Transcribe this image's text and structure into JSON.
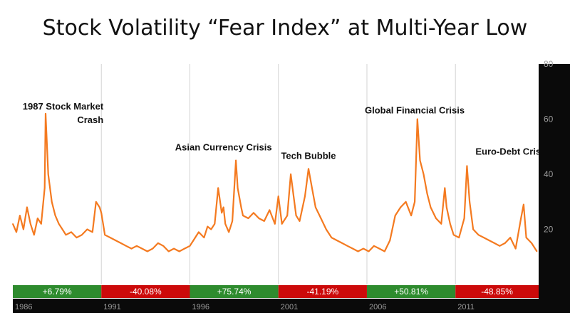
{
  "title": "Stock Volatility “Fear Index” at Multi-Year Low",
  "chart_data": {
    "type": "line",
    "title": "Stock Volatility “Fear Index” at Multi-Year Low",
    "xlim": [
      1986,
      2015.7
    ],
    "ylim": [
      0,
      80
    ],
    "y_ticks": [
      20,
      40,
      60,
      80
    ],
    "y_tick_labels": [
      "20",
      "40",
      "60",
      "80"
    ],
    "x_ticks": [
      1986,
      1991,
      1996,
      2001,
      2006,
      2011
    ],
    "x_tick_labels": [
      "1986",
      "1991",
      "1996",
      "2001",
      "2006",
      "2011"
    ],
    "grid": true,
    "line_color": "#f47a20",
    "series": [
      {
        "x": [
          1986.0,
          1986.2,
          1986.4,
          1986.6,
          1986.8,
          1987.0,
          1987.2,
          1987.4,
          1987.6,
          1987.8,
          1987.85,
          1987.9,
          1988.0,
          1988.2,
          1988.4,
          1988.6,
          1988.8,
          1989.0,
          1989.3,
          1989.6,
          1989.9,
          1990.2,
          1990.5,
          1990.7,
          1990.9,
          1991.0,
          1991.2,
          1991.5,
          1991.8,
          1992.1,
          1992.4,
          1992.7,
          1993.0,
          1993.3,
          1993.6,
          1993.9,
          1994.2,
          1994.5,
          1994.8,
          1995.1,
          1995.4,
          1995.7,
          1996.0,
          1996.2,
          1996.5,
          1996.8,
          1997.0,
          1997.2,
          1997.4,
          1997.6,
          1997.8,
          1997.9,
          1998.0,
          1998.2,
          1998.4,
          1998.6,
          1998.7,
          1998.9,
          1999.0,
          1999.3,
          1999.6,
          1999.9,
          2000.2,
          2000.5,
          2000.8,
          2001.0,
          2001.2,
          2001.5,
          2001.7,
          2001.9,
          2002.0,
          2002.2,
          2002.5,
          2002.7,
          2002.9,
          2003.1,
          2003.4,
          2003.7,
          2004.0,
          2004.3,
          2004.6,
          2004.9,
          2005.2,
          2005.5,
          2005.8,
          2006.1,
          2006.4,
          2006.7,
          2007.0,
          2007.3,
          2007.6,
          2007.9,
          2008.2,
          2008.5,
          2008.7,
          2008.85,
          2009.0,
          2009.2,
          2009.4,
          2009.6,
          2009.9,
          2010.2,
          2010.4,
          2010.5,
          2010.7,
          2010.9,
          2011.2,
          2011.5,
          2011.65,
          2011.8,
          2012.0,
          2012.3,
          2012.6,
          2012.9,
          2013.2,
          2013.5,
          2013.8,
          2014.1,
          2014.4,
          2014.7,
          2014.85,
          2015.0,
          2015.3,
          2015.6
        ],
        "y": [
          22,
          19,
          25,
          20,
          28,
          22,
          18,
          24,
          22,
          35,
          62,
          55,
          40,
          30,
          25,
          22,
          20,
          18,
          19,
          17,
          18,
          20,
          19,
          30,
          28,
          26,
          18,
          17,
          16,
          15,
          14,
          13,
          14,
          13,
          12,
          13,
          15,
          14,
          12,
          13,
          12,
          13,
          14,
          16,
          19,
          17,
          21,
          20,
          22,
          35,
          26,
          28,
          22,
          19,
          23,
          45,
          35,
          28,
          25,
          24,
          26,
          24,
          23,
          27,
          22,
          32,
          22,
          25,
          40,
          30,
          25,
          23,
          32,
          42,
          35,
          28,
          24,
          20,
          17,
          16,
          15,
          14,
          13,
          12,
          13,
          12,
          14,
          13,
          12,
          16,
          25,
          28,
          30,
          25,
          30,
          60,
          45,
          40,
          33,
          28,
          24,
          22,
          35,
          28,
          22,
          18,
          17,
          24,
          43,
          30,
          20,
          18,
          17,
          16,
          15,
          14,
          15,
          17,
          13,
          24,
          29,
          17,
          15,
          12
        ]
      }
    ],
    "annotations": [
      {
        "text": "1987 Stock Market",
        "text2": "Crash",
        "x": 1987.9,
        "y": 62
      },
      {
        "text": "Asian Currency Crisis",
        "x": 1997.9,
        "y": 45
      },
      {
        "text": "Tech Bubble",
        "x": 2002.7,
        "y": 42
      },
      {
        "text": "Global Financial Crisis",
        "x": 2008.7,
        "y": 60
      },
      {
        "text": "Euro-Debt Crisis",
        "x": 2011.65,
        "y": 43
      }
    ],
    "period_returns": [
      {
        "label": "+6.79%",
        "start": 1986,
        "end": 1991,
        "color": "#2e8b2e"
      },
      {
        "label": "-40.08%",
        "start": 1991,
        "end": 1996,
        "color": "#cc0a0a"
      },
      {
        "label": "+75.74%",
        "start": 1996,
        "end": 2001,
        "color": "#2e8b2e"
      },
      {
        "label": "-41.19%",
        "start": 2001,
        "end": 2006,
        "color": "#cc0a0a"
      },
      {
        "label": "+50.81%",
        "start": 2006,
        "end": 2011,
        "color": "#2e8b2e"
      },
      {
        "label": "-48.85%",
        "start": 2011,
        "end": 2015.7,
        "color": "#cc0a0a"
      }
    ]
  }
}
